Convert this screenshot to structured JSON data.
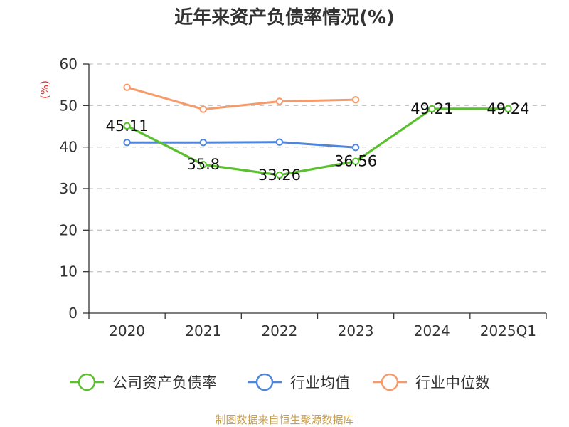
{
  "chart_data": {
    "type": "line",
    "title": "近年来资产负债率情况(%)",
    "unit_label": "(%)",
    "categories": [
      "2020",
      "2021",
      "2022",
      "2023",
      "2024",
      "2025Q1"
    ],
    "ylim": [
      0,
      60
    ],
    "yticks": [
      0,
      10,
      20,
      30,
      40,
      50,
      60
    ],
    "grid": true,
    "legend_position": "bottom",
    "series": [
      {
        "name": "公司资产负债率",
        "color": "#5ac02e",
        "values": [
          45.11,
          35.8,
          33.26,
          36.56,
          49.21,
          49.24
        ],
        "labels": [
          "45.11",
          "35.8",
          "33.26",
          "36.56",
          "49.21",
          "49.24"
        ]
      },
      {
        "name": "行业均值",
        "color": "#4f86dc",
        "values": [
          41.1,
          41.1,
          41.2,
          39.9,
          null,
          null
        ]
      },
      {
        "name": "行业中位数",
        "color": "#f59a6a",
        "values": [
          54.4,
          49.1,
          51.0,
          51.4,
          null,
          null
        ]
      }
    ]
  },
  "footer": "制图数据来自恒生聚源数据库"
}
